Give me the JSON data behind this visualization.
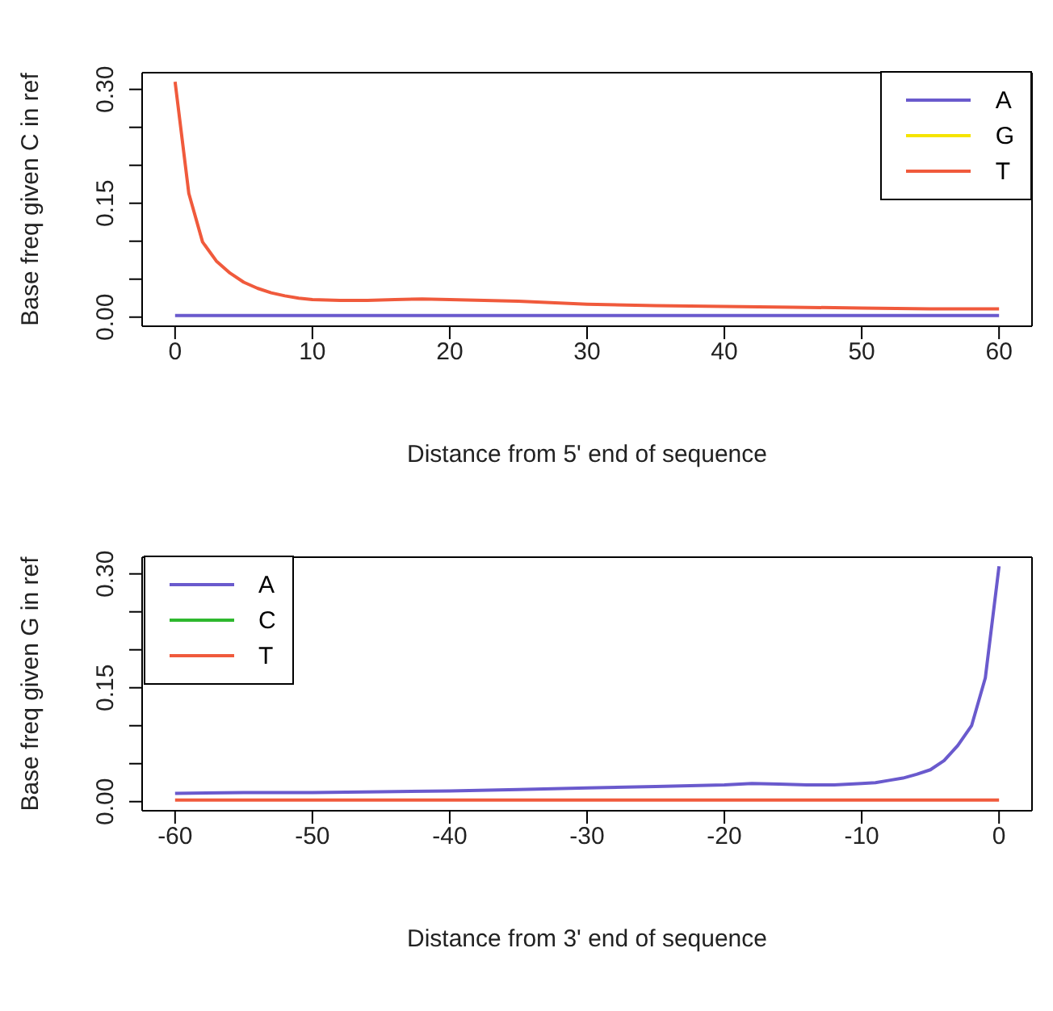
{
  "chart_data": [
    {
      "type": "line",
      "xlabel": "Distance from 5' end of sequence",
      "ylabel": "Base freq given C in ref",
      "legend": "top right",
      "grid": false,
      "marker": "none",
      "line_style": "solid",
      "x": [
        0,
        1,
        2,
        3,
        4,
        5,
        6,
        7,
        8,
        9,
        10,
        12,
        14,
        16,
        18,
        20,
        25,
        30,
        35,
        40,
        45,
        50,
        55,
        60
      ],
      "series": [
        {
          "name": "A",
          "color": "#6a5acd",
          "values": [
            0.002,
            0.002,
            0.002,
            0.002,
            0.002,
            0.002,
            0.002,
            0.002,
            0.002,
            0.002,
            0.002,
            0.002,
            0.002,
            0.002,
            0.002,
            0.002,
            0.002,
            0.002,
            0.002,
            0.002,
            0.002,
            0.002,
            0.002,
            0.002
          ]
        },
        {
          "name": "G",
          "color": "#f5e400",
          "values": [
            null,
            null,
            null,
            null,
            null,
            null,
            null,
            null,
            null,
            null,
            null,
            null,
            null,
            null,
            null,
            null,
            null,
            null,
            null,
            null,
            null,
            null,
            null,
            null
          ]
        },
        {
          "name": "T",
          "color": "#f05a3c",
          "values": [
            0.31,
            0.163,
            0.099,
            0.074,
            0.058,
            0.046,
            0.038,
            0.032,
            0.028,
            0.025,
            0.023,
            0.022,
            0.022,
            0.023,
            0.024,
            0.023,
            0.021,
            0.017,
            0.015,
            0.014,
            0.013,
            0.012,
            0.011,
            0.011
          ]
        }
      ],
      "xlim": [
        -2.4,
        62.4
      ],
      "xticks": [
        0,
        10,
        20,
        30,
        40,
        50,
        60
      ],
      "ylim": [
        -0.012,
        0.322
      ],
      "yticks": [
        {
          "value": 0,
          "label": "0.00"
        },
        {
          "value": 0.05,
          "label": null
        },
        {
          "value": 0.1,
          "label": null
        },
        {
          "value": 0.15,
          "label": "0.15"
        },
        {
          "value": 0.2,
          "label": null
        },
        {
          "value": 0.25,
          "label": null
        },
        {
          "value": 0.3,
          "label": "0.30"
        }
      ]
    },
    {
      "type": "line",
      "xlabel": "Distance from 3' end of sequence",
      "ylabel": "Base freq given G in ref",
      "legend": "top left",
      "grid": false,
      "marker": "none",
      "line_style": "solid",
      "x": [
        -60,
        -55,
        -50,
        -45,
        -40,
        -35,
        -30,
        -25,
        -20,
        -18,
        -16,
        -14,
        -12,
        -10,
        -9,
        -8,
        -7,
        -6,
        -5,
        -4,
        -3,
        -2,
        -1,
        0
      ],
      "series": [
        {
          "name": "A",
          "color": "#6a5acd",
          "values": [
            0.011,
            0.012,
            0.012,
            0.013,
            0.014,
            0.016,
            0.018,
            0.02,
            0.022,
            0.024,
            0.023,
            0.022,
            0.022,
            0.024,
            0.025,
            0.028,
            0.031,
            0.036,
            0.042,
            0.054,
            0.074,
            0.1,
            0.163,
            0.31
          ]
        },
        {
          "name": "C",
          "color": "#2eb82e",
          "values": [
            null,
            null,
            null,
            null,
            null,
            null,
            null,
            null,
            null,
            null,
            null,
            null,
            null,
            null,
            null,
            null,
            null,
            null,
            null,
            null,
            null,
            null,
            null,
            null
          ]
        },
        {
          "name": "T",
          "color": "#f05a3c",
          "values": [
            0.002,
            0.002,
            0.002,
            0.002,
            0.002,
            0.002,
            0.002,
            0.002,
            0.002,
            0.002,
            0.002,
            0.002,
            0.002,
            0.002,
            0.002,
            0.002,
            0.002,
            0.002,
            0.002,
            0.002,
            0.002,
            0.002,
            0.002,
            0.002
          ]
        }
      ],
      "xlim": [
        -62.4,
        2.4
      ],
      "xticks": [
        -60,
        -50,
        -40,
        -30,
        -20,
        -10,
        0
      ],
      "ylim": [
        -0.012,
        0.322
      ],
      "yticks": [
        {
          "value": 0,
          "label": "0.00"
        },
        {
          "value": 0.05,
          "label": null
        },
        {
          "value": 0.1,
          "label": null
        },
        {
          "value": 0.15,
          "label": "0.15"
        },
        {
          "value": 0.2,
          "label": null
        },
        {
          "value": 0.25,
          "label": null
        },
        {
          "value": 0.3,
          "label": "0.30"
        }
      ]
    }
  ]
}
